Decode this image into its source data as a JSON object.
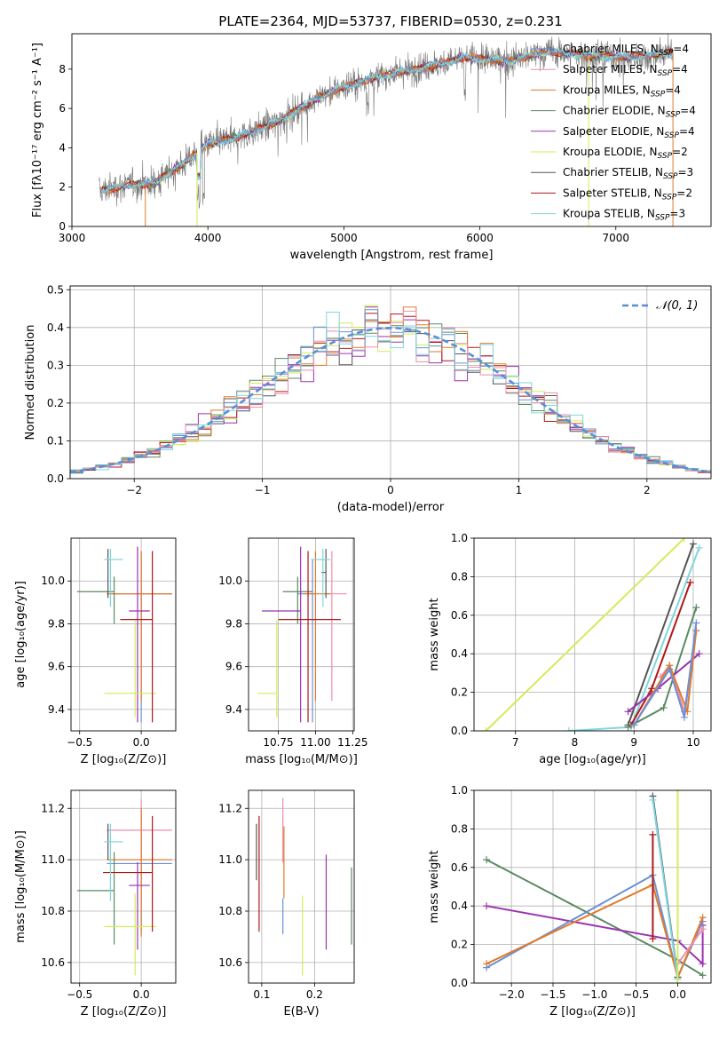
{
  "figure_title": "PLATE=2364, MJD=53737, FIBERID=0530, z=0.231",
  "colors": {
    "Chabrier MILES": "#6a90d8",
    "Salpeter MILES": "#ee8ea8",
    "Kroupa MILES": "#e07b2c",
    "Chabrier ELODIE": "#5a8a62",
    "Salpeter ELODIE": "#9a33b0",
    "Kroupa ELODIE": "#d2ec5a",
    "Chabrier STELIB": "#555555",
    "Salpeter STELIB": "#b01818",
    "Kroupa STELIB": "#7fd6de",
    "gaussian": "#5b8ed6"
  },
  "chart_data": [
    {
      "id": "spectrum",
      "type": "line",
      "xlabel": "wavelength [Angstrom, rest frame]",
      "ylabel": "Flux [fλ10⁻¹⁷ erg cm⁻² s⁻¹ A⁻¹]",
      "xlim": [
        3000,
        7700
      ],
      "ylim": [
        0,
        9.8
      ],
      "xticks": [
        "3000",
        "4000",
        "5000",
        "6000",
        "7000"
      ],
      "yticks": [
        "0",
        "2",
        "4",
        "6",
        "8"
      ],
      "legend_position": "top-right",
      "legend": [
        {
          "key": "Chabrier MILES",
          "label": "Chabrier MILES, N",
          "sub": "SSP",
          "tail": "=4"
        },
        {
          "key": "Salpeter MILES",
          "label": "Salpeter MILES, N",
          "sub": "SSP",
          "tail": "=4"
        },
        {
          "key": "Kroupa MILES",
          "label": "Kroupa MILES, N",
          "sub": "SSP",
          "tail": "=4"
        },
        {
          "key": "Chabrier ELODIE",
          "label": "Chabrier ELODIE, N",
          "sub": "SSP",
          "tail": "=4"
        },
        {
          "key": "Salpeter ELODIE",
          "label": "Salpeter ELODIE, N",
          "sub": "SSP",
          "tail": "=4"
        },
        {
          "key": "Kroupa ELODIE",
          "label": "Kroupa ELODIE, N",
          "sub": "SSP",
          "tail": "=2"
        },
        {
          "key": "Chabrier STELIB",
          "label": "Chabrier STELIB, N",
          "sub": "SSP",
          "tail": "=3"
        },
        {
          "key": "Salpeter STELIB",
          "label": "Salpeter STELIB, N",
          "sub": "SSP",
          "tail": "=2"
        },
        {
          "key": "Kroupa STELIB",
          "label": "Kroupa STELIB, N",
          "sub": "SSP",
          "tail": "=3"
        }
      ],
      "data_envelope": {
        "x": [
          3200,
          3400,
          3600,
          3800,
          4000,
          4200,
          4500,
          4800,
          5000,
          5300,
          5600,
          5900,
          6200,
          6500,
          6800,
          7100,
          7400
        ],
        "y": [
          1.8,
          2.1,
          2.2,
          3.1,
          4.2,
          4.5,
          5.3,
          6.5,
          7.1,
          7.7,
          8.1,
          8.6,
          8.4,
          8.9,
          8.7,
          8.6,
          8.8
        ]
      },
      "model_drops": [
        {
          "key": "Kroupa MILES",
          "x": 3540
        },
        {
          "key": "Kroupa ELODIE",
          "x": 3920
        },
        {
          "key": "Kroupa ELODIE",
          "x": 6800
        },
        {
          "key": "Kroupa MILES",
          "x": 7420
        }
      ]
    },
    {
      "id": "residual-histogram",
      "type": "line",
      "xlabel": "(data-model)/error",
      "ylabel": "Normed distribution",
      "xlim": [
        -2.5,
        2.5
      ],
      "ylim": [
        0,
        0.51
      ],
      "xticks": [
        "−2",
        "−1",
        "0",
        "1",
        "2"
      ],
      "yticks": [
        "0.0",
        "0.1",
        "0.2",
        "0.3",
        "0.4",
        "0.5"
      ],
      "grid": true,
      "legend_position": "top-right",
      "gaussian_label": "𝒩(0, 1)",
      "bin_width": 0.1
    },
    {
      "id": "age-vs-metallicity",
      "type": "scatter",
      "xlabel": "Z [log₁₀(Z/Z⊙)]",
      "ylabel": "age  [log₁₀(age/yr)]",
      "xlim": [
        -0.57,
        0.28
      ],
      "ylim": [
        9.3,
        10.2
      ],
      "xticks": [
        "−0.5",
        "0.0"
      ],
      "yticks": [
        "9.4",
        "9.6",
        "9.8",
        "10.0"
      ],
      "grid": true,
      "points": [
        {
          "key": "Chabrier MILES",
          "x": 0.0,
          "y": 9.94,
          "xerr": [
            0.25,
            0.25
          ],
          "yerr": [
            0.6,
            0.16
          ]
        },
        {
          "key": "Salpeter MILES",
          "x": 0.0,
          "y": 9.94,
          "xerr": [
            0.28,
            0.25
          ],
          "yerr": [
            0.5,
            0.2
          ]
        },
        {
          "key": "Kroupa MILES",
          "x": 0.0,
          "y": 9.94,
          "xerr": [
            0.28,
            0.25
          ],
          "yerr": [
            0.5,
            0.2
          ]
        },
        {
          "key": "Chabrier ELODIE",
          "x": -0.22,
          "y": 9.95,
          "xerr": [
            0.3,
            0.0
          ],
          "yerr": [
            0.15,
            0.07
          ]
        },
        {
          "key": "Salpeter ELODIE",
          "x": -0.03,
          "y": 9.86,
          "xerr": [
            0.07,
            0.1
          ],
          "yerr": [
            0.52,
            0.3
          ]
        },
        {
          "key": "Kroupa ELODIE",
          "x": -0.05,
          "y": 9.475,
          "xerr": [
            0.25,
            0.17
          ],
          "yerr": [
            0.11,
            0.34
          ]
        },
        {
          "key": "Chabrier STELIB",
          "x": -0.27,
          "y": 10.04,
          "xerr": [
            0.0,
            0.0
          ],
          "yerr": [
            0.12,
            0.11
          ]
        },
        {
          "key": "Salpeter STELIB",
          "x": 0.09,
          "y": 9.82,
          "xerr": [
            0.26,
            0.0
          ],
          "yerr": [
            0.48,
            0.32
          ]
        },
        {
          "key": "Kroupa STELIB",
          "x": -0.25,
          "y": 10.1,
          "xerr": [
            0.05,
            0.1
          ],
          "yerr": [
            0.22,
            0.05
          ]
        }
      ]
    },
    {
      "id": "age-vs-mass",
      "type": "scatter",
      "xlabel": "mass [log₁₀(M/M⊙)]",
      "xlim": [
        10.55,
        11.26
      ],
      "ylim": [
        9.3,
        10.2
      ],
      "xticks": [
        "10.75",
        "11.00",
        "11.25"
      ],
      "yticks": [
        "9.4",
        "9.6",
        "9.8",
        "10.0"
      ],
      "grid": true,
      "points": [
        {
          "key": "Chabrier MILES",
          "x": 10.98,
          "y": 9.94,
          "xerr": [
            0.1,
            0.02
          ],
          "yerr": [
            0.6,
            0.16
          ]
        },
        {
          "key": "Salpeter MILES",
          "x": 11.11,
          "y": 9.94,
          "xerr": [
            0.05,
            0.1
          ],
          "yerr": [
            0.5,
            0.2
          ]
        },
        {
          "key": "Kroupa MILES",
          "x": 11.0,
          "y": 9.94,
          "xerr": [
            0.08,
            0.1
          ],
          "yerr": [
            0.5,
            0.2
          ]
        },
        {
          "key": "Chabrier ELODIE",
          "x": 10.88,
          "y": 9.95,
          "xerr": [
            0.1,
            0.1
          ],
          "yerr": [
            0.15,
            0.07
          ]
        },
        {
          "key": "Salpeter ELODIE",
          "x": 10.9,
          "y": 9.86,
          "xerr": [
            0.26,
            0.0
          ],
          "yerr": [
            0.52,
            0.3
          ]
        },
        {
          "key": "Kroupa ELODIE",
          "x": 10.74,
          "y": 9.475,
          "xerr": [
            0.13,
            0.0
          ],
          "yerr": [
            0.11,
            0.34
          ]
        },
        {
          "key": "Chabrier STELIB",
          "x": 11.07,
          "y": 10.04,
          "xerr": [
            0.03,
            0.0
          ],
          "yerr": [
            0.12,
            0.11
          ]
        },
        {
          "key": "Salpeter STELIB",
          "x": 10.95,
          "y": 9.82,
          "xerr": [
            0.2,
            0.22
          ],
          "yerr": [
            0.48,
            0.32
          ]
        },
        {
          "key": "Kroupa STELIB",
          "x": 11.05,
          "y": 10.1,
          "xerr": [
            0.08,
            0.05
          ],
          "yerr": [
            0.22,
            0.05
          ]
        }
      ]
    },
    {
      "id": "mass-weight-vs-age",
      "type": "line",
      "xlabel": "age  [log₁₀(age/yr)]",
      "ylabel": "mass weight",
      "xlim": [
        6.3,
        10.3
      ],
      "ylim": [
        0,
        1.0
      ],
      "xticks": [
        "7",
        "8",
        "9",
        "10"
      ],
      "yticks": [
        "0.0",
        "0.2",
        "0.4",
        "0.6",
        "0.8",
        "1.0"
      ],
      "grid": true,
      "series": [
        {
          "key": "Kroupa ELODIE",
          "x": [
            6.5,
            9.85
          ],
          "y": [
            0.0,
            1.0
          ]
        },
        {
          "key": "Kroupa STELIB",
          "x": [
            7.9,
            8.95,
            10.1
          ],
          "y": [
            0.0,
            0.02,
            0.95
          ]
        },
        {
          "key": "Chabrier STELIB",
          "x": [
            8.9,
            10.0
          ],
          "y": [
            0.03,
            0.97
          ]
        },
        {
          "key": "Salpeter STELIB",
          "x": [
            8.95,
            9.3,
            9.95
          ],
          "y": [
            0.03,
            0.22,
            0.77
          ]
        },
        {
          "key": "Chabrier ELODIE",
          "x": [
            8.9,
            9.5,
            10.05
          ],
          "y": [
            0.02,
            0.12,
            0.64
          ]
        },
        {
          "key": "Salpeter ELODIE",
          "x": [
            8.9,
            9.4,
            10.1
          ],
          "y": [
            0.1,
            0.22,
            0.4
          ]
        },
        {
          "key": "Salpeter MILES",
          "x": [
            9.45,
            9.6,
            9.85,
            10.05
          ],
          "y": [
            0.28,
            0.34,
            0.1,
            0.52
          ]
        },
        {
          "key": "Kroupa MILES",
          "x": [
            9.0,
            9.6,
            9.9,
            10.05
          ],
          "y": [
            0.03,
            0.34,
            0.1,
            0.52
          ]
        },
        {
          "key": "Chabrier MILES",
          "x": [
            9.0,
            9.6,
            9.85,
            10.05
          ],
          "y": [
            0.03,
            0.32,
            0.07,
            0.56
          ]
        }
      ]
    },
    {
      "id": "mass-vs-metallicity",
      "type": "scatter",
      "xlabel": "Z [log₁₀(Z/Z⊙)]",
      "ylabel": "mass [log₁₀(M/M⊙)]",
      "xlim": [
        -0.57,
        0.28
      ],
      "ylim": [
        10.52,
        11.27
      ],
      "xticks": [
        "−0.5",
        "0.0"
      ],
      "yticks": [
        "10.6",
        "10.8",
        "11.0",
        "11.2"
      ],
      "grid": true,
      "points": [
        {
          "key": "Chabrier MILES",
          "x": 0.0,
          "y": 10.985,
          "xerr": [
            0.28,
            0.25
          ],
          "yerr": [
            0.27,
            0.21
          ]
        },
        {
          "key": "Salpeter MILES",
          "x": 0.0,
          "y": 11.115,
          "xerr": [
            0.28,
            0.25
          ],
          "yerr": [
            0.3,
            0.12
          ]
        },
        {
          "key": "Kroupa MILES",
          "x": 0.0,
          "y": 11.0,
          "xerr": [
            0.28,
            0.25
          ],
          "yerr": [
            0.3,
            0.2
          ]
        },
        {
          "key": "Chabrier ELODIE",
          "x": -0.22,
          "y": 10.88,
          "xerr": [
            0.3,
            0.0
          ],
          "yerr": [
            0.21,
            0.15
          ]
        },
        {
          "key": "Salpeter ELODIE",
          "x": -0.03,
          "y": 10.9,
          "xerr": [
            0.07,
            0.1
          ],
          "yerr": [
            0.25,
            0.09
          ]
        },
        {
          "key": "Kroupa ELODIE",
          "x": -0.05,
          "y": 10.74,
          "xerr": [
            0.25,
            0.17
          ],
          "yerr": [
            0.19,
            0.13
          ]
        },
        {
          "key": "Chabrier STELIB",
          "x": -0.27,
          "y": 11.07,
          "xerr": [
            0.0,
            0.0
          ],
          "yerr": [
            0.07,
            0.07
          ]
        },
        {
          "key": "Salpeter STELIB",
          "x": 0.09,
          "y": 10.95,
          "xerr": [
            0.4,
            0.0
          ],
          "yerr": [
            0.23,
            0.22
          ]
        },
        {
          "key": "Kroupa STELIB",
          "x": -0.25,
          "y": 11.07,
          "xerr": [
            0.05,
            0.1
          ],
          "yerr": [
            0.23,
            0.07
          ]
        }
      ]
    },
    {
      "id": "mass-vs-extinction",
      "type": "scatter",
      "xlabel": "E(B-V)",
      "xlim": [
        0.075,
        0.275
      ],
      "ylim": [
        10.52,
        11.27
      ],
      "xticks": [
        "0.1",
        "0.2"
      ],
      "yticks": [
        "10.6",
        "10.8",
        "11.0",
        "11.2"
      ],
      "grid": true,
      "vertical_bars": [
        {
          "key": "Chabrier STELIB",
          "x": 0.09,
          "ymin": 10.92,
          "ymax": 11.14
        },
        {
          "key": "Salpeter STELIB",
          "x": 0.095,
          "ymin": 10.72,
          "ymax": 11.17
        },
        {
          "key": "Salpeter MILES",
          "x": 0.14,
          "ymin": 10.99,
          "ymax": 11.24
        },
        {
          "key": "Kroupa MILES",
          "x": 0.142,
          "ymin": 10.85,
          "ymax": 11.13
        },
        {
          "key": "Chabrier MILES",
          "x": 0.14,
          "ymin": 10.71,
          "ymax": 10.85
        },
        {
          "key": "Kroupa ELODIE",
          "x": 0.177,
          "ymin": 10.55,
          "ymax": 10.86
        },
        {
          "key": "Salpeter ELODIE",
          "x": 0.222,
          "ymin": 10.65,
          "ymax": 11.02
        },
        {
          "key": "Chabrier ELODIE",
          "x": 0.27,
          "ymin": 10.67,
          "ymax": 10.97
        }
      ]
    },
    {
      "id": "mass-weight-vs-metallicity",
      "type": "line",
      "xlabel": "Z [log₁₀(Z/Z⊙)]",
      "ylabel": "mass weight",
      "xlim": [
        -2.45,
        0.4
      ],
      "ylim": [
        0,
        1.0
      ],
      "xticks": [
        "−2.0",
        "−1.5",
        "−1.0",
        "−0.5",
        "0.0"
      ],
      "yticks": [
        "0.0",
        "0.2",
        "0.4",
        "0.6",
        "0.8",
        "1.0"
      ],
      "grid": true,
      "series": [
        {
          "key": "Chabrier ELODIE",
          "x": [
            -2.3,
            0.0,
            0.3
          ],
          "y": [
            0.64,
            0.12,
            0.04
          ]
        },
        {
          "key": "Salpeter ELODIE",
          "x": [
            -2.3,
            0.0,
            0.3,
            0.3
          ],
          "y": [
            0.4,
            0.22,
            0.1,
            0.3
          ]
        },
        {
          "key": "Chabrier MILES",
          "x": [
            -2.3,
            -0.3,
            0.0,
            0.3
          ],
          "y": [
            0.08,
            0.56,
            0.03,
            0.32
          ]
        },
        {
          "key": "Kroupa MILES",
          "x": [
            -2.3,
            -0.3,
            0.0,
            0.3
          ],
          "y": [
            0.1,
            0.51,
            0.03,
            0.34
          ]
        },
        {
          "key": "Salpeter MILES",
          "x": [
            0.0,
            0.3
          ],
          "y": [
            0.1,
            0.28
          ]
        },
        {
          "key": "Salpeter STELIB",
          "x": [
            -0.3,
            -0.3
          ],
          "y": [
            0.23,
            0.77
          ]
        },
        {
          "key": "Chabrier STELIB",
          "x": [
            -0.3,
            0.0
          ],
          "y": [
            0.97,
            0.03
          ]
        },
        {
          "key": "Kroupa STELIB",
          "x": [
            -0.3,
            0.0
          ],
          "y": [
            0.95,
            0.02
          ]
        },
        {
          "key": "Kroupa ELODIE",
          "x": [
            0.0,
            0.0
          ],
          "y": [
            0.0,
            1.0
          ]
        }
      ]
    }
  ]
}
